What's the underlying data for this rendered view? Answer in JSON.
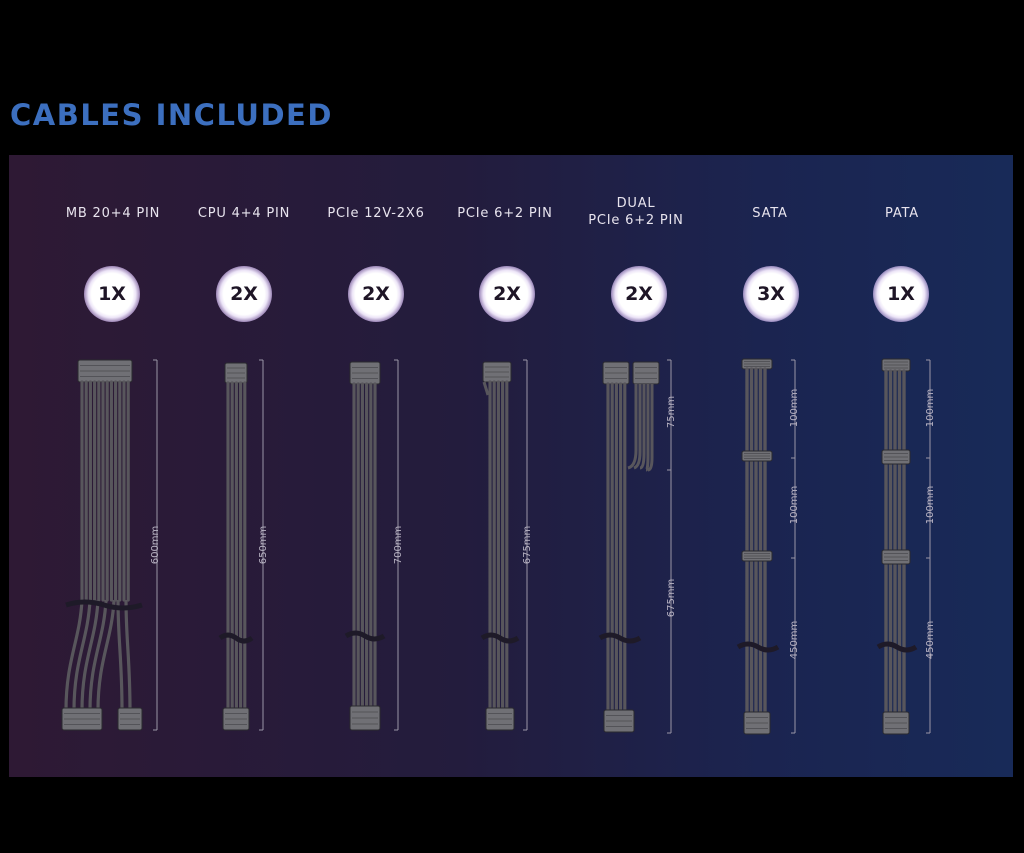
{
  "title": "CABLES INCLUDED",
  "cables": [
    {
      "name": "MB 20+4 PIN",
      "qty": "1X",
      "lengths": [
        "600mm"
      ]
    },
    {
      "name": "CPU 4+4 PIN",
      "qty": "2X",
      "lengths": [
        "650mm"
      ]
    },
    {
      "name": "PCIe 12V-2X6",
      "qty": "2X",
      "lengths": [
        "700mm"
      ]
    },
    {
      "name": "PCIe 6+2 PIN",
      "qty": "2X",
      "lengths": [
        "675mm"
      ]
    },
    {
      "name_line1": "DUAL",
      "name_line2": "PCIe 6+2 PIN",
      "qty": "2X",
      "lengths": [
        "75mm",
        "675mm"
      ]
    },
    {
      "name": "SATA",
      "qty": "3X",
      "lengths": [
        "100mm",
        "100mm",
        "450mm"
      ]
    },
    {
      "name": "PATA",
      "qty": "1X",
      "lengths": [
        "100mm",
        "100mm",
        "450mm"
      ]
    }
  ],
  "colors": {
    "title": "#3c6fbf",
    "cable": "#58565c",
    "connector": "#707075"
  }
}
